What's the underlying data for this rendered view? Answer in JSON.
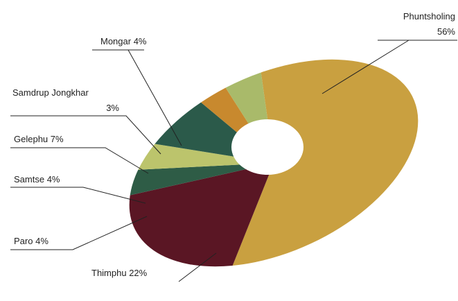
{
  "chart_data": {
    "type": "pie",
    "categories": [
      "Phuntsholing",
      "Thimphu",
      "Paro",
      "Samtse",
      "Gelephu",
      "Samdrup Jongkhar",
      "Mongar"
    ],
    "values": [
      56,
      22,
      4,
      4,
      7,
      3,
      4
    ],
    "value_labels": [
      "56%",
      "22%",
      "4%",
      "4%",
      "7%",
      "3%",
      "4%"
    ],
    "colors": [
      "#c9a040",
      "#5a1624",
      "#2e5c46",
      "#bcc46c",
      "#2b5a4a",
      "#c8892e",
      "#a9ba6a"
    ]
  }
}
